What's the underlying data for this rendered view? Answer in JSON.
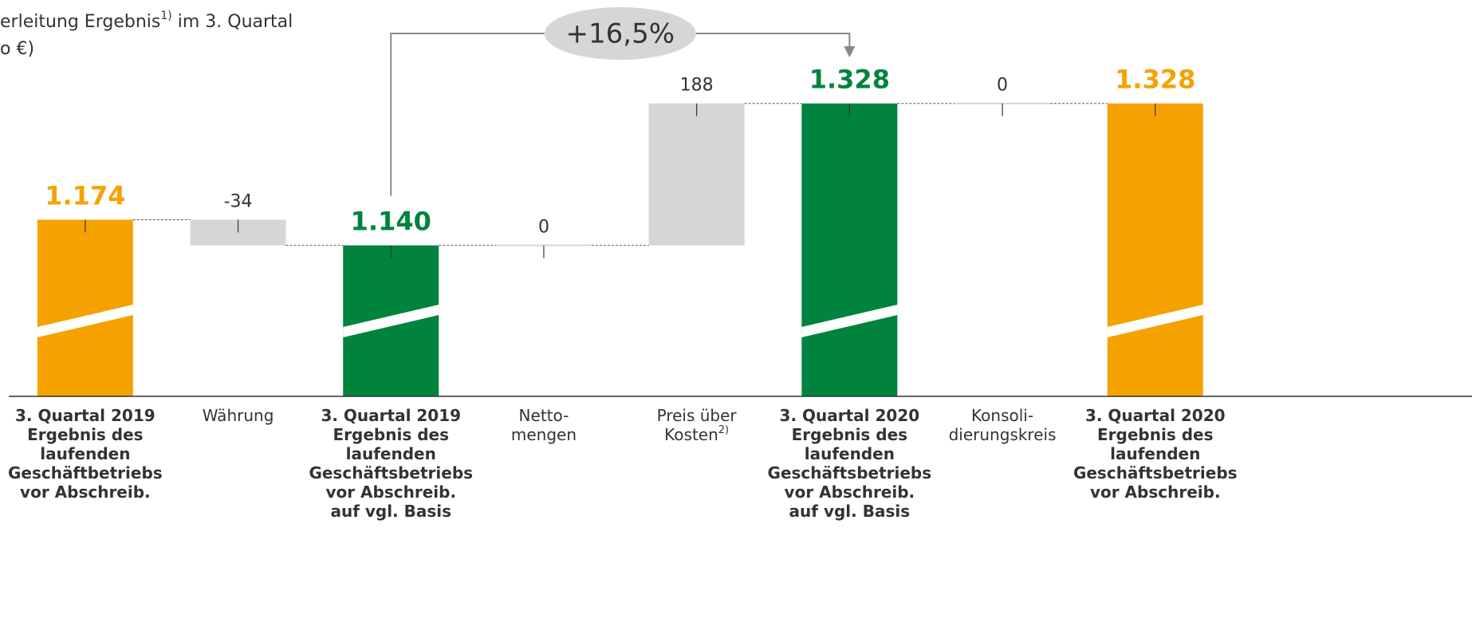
{
  "chart_data": {
    "type": "waterfall",
    "title_parts": [
      "erleitung Ergebnis",
      "1)",
      " im 3. Quartal"
    ],
    "title_line2": "o €)",
    "categories": [
      [
        "3. Quartal 2019",
        "Ergebnis des",
        "laufenden",
        "Geschäftbetriebs",
        "vor Abschreib."
      ],
      [
        "Währung"
      ],
      [
        "3. Quartal 2019",
        "Ergebnis des",
        "laufenden",
        "Geschäftsbetriebs",
        "vor Abschreib.",
        "auf vgl. Basis"
      ],
      [
        "Netto-",
        "mengen"
      ],
      [
        "Preis über",
        "Kosten"
      ],
      [
        "3. Quartal 2020",
        "Ergebnis des",
        "laufenden",
        "Geschäftsbetriebs",
        "vor Abschreib.",
        "auf vgl. Basis"
      ],
      [
        "Konsoli-",
        "dierungskreis"
      ],
      [
        "3. Quartal 2020",
        "Ergebnis des",
        "laufenden",
        "Geschäftsbetriebs",
        "vor Abschreib."
      ]
    ],
    "category_footnotes": [
      null,
      null,
      null,
      null,
      "2)",
      null,
      null,
      null
    ],
    "measure": [
      "total",
      "relative",
      "total",
      "relative",
      "relative",
      "total",
      "relative",
      "total"
    ],
    "values": [
      1174,
      -34,
      1140,
      0,
      188,
      1328,
      0,
      1328
    ],
    "value_labels": [
      "1.174",
      "-34",
      "1.140",
      "0",
      "188",
      "1.328",
      "0",
      "1.328"
    ],
    "colors": [
      "#f5a200",
      "#d5d6d7",
      "#00843d",
      "#d5d6d7",
      "#d5d6d7",
      "#00843d",
      "#d5d6d7",
      "#f5a200"
    ],
    "ylim": [
      940,
      1465
    ],
    "annotation": {
      "label": "+16,5%",
      "from": 2,
      "to": 5
    }
  }
}
